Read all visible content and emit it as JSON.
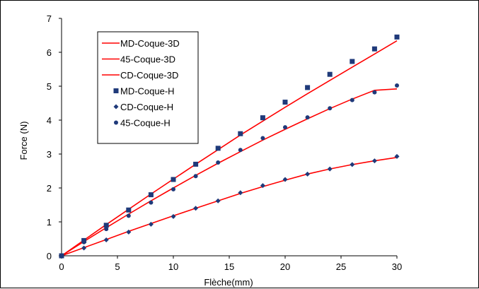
{
  "chart_data": {
    "type": "line",
    "xlabel": "Flèche(mm)",
    "ylabel": "Force (N)",
    "xlim": [
      0,
      30
    ],
    "ylim": [
      0,
      7
    ],
    "xticks": [
      "0",
      "5",
      "10",
      "15",
      "20",
      "25",
      "30"
    ],
    "yticks": [
      "0",
      "1",
      "2",
      "3",
      "4",
      "5",
      "6",
      "7"
    ],
    "grid": false,
    "legend_position": "top-left",
    "colors": {
      "line": "#ff0000",
      "marker": "#1f3a7a",
      "axis": "#000000"
    },
    "series": [
      {
        "name": "MD-Coque-3D",
        "kind": "line",
        "x": [
          0,
          2,
          4,
          6,
          8,
          10,
          12,
          14,
          16,
          18,
          20,
          22,
          24,
          26,
          28,
          30
        ],
        "y": [
          0,
          0.46,
          0.92,
          1.37,
          1.82,
          2.26,
          2.7,
          3.13,
          3.56,
          3.97,
          4.38,
          4.78,
          5.17,
          5.56,
          5.95,
          6.34
        ]
      },
      {
        "name": "45-Coque-3D",
        "kind": "line",
        "x": [
          0,
          2,
          4,
          6,
          8,
          10,
          12,
          14,
          16,
          18,
          20,
          22,
          24,
          26,
          28,
          30
        ],
        "y": [
          0,
          0.42,
          0.83,
          1.23,
          1.62,
          2.0,
          2.37,
          2.73,
          3.07,
          3.41,
          3.73,
          4.04,
          4.34,
          4.62,
          4.88,
          4.92
        ]
      },
      {
        "name": "CD-Coque-3D",
        "kind": "line",
        "x": [
          0,
          2,
          4,
          6,
          8,
          10,
          12,
          14,
          16,
          18,
          20,
          22,
          24,
          26,
          28,
          30
        ],
        "y": [
          0,
          0.24,
          0.48,
          0.72,
          0.95,
          1.18,
          1.4,
          1.62,
          1.84,
          2.04,
          2.23,
          2.41,
          2.56,
          2.69,
          2.8,
          2.9
        ]
      },
      {
        "name": "MD-Coque-H",
        "kind": "marker",
        "marker": "square",
        "x": [
          0,
          2,
          4,
          6,
          8,
          10,
          12,
          14,
          16,
          18,
          20,
          22,
          24,
          26,
          28,
          30
        ],
        "y": [
          0,
          0.45,
          0.9,
          1.35,
          1.8,
          2.25,
          2.7,
          3.17,
          3.6,
          4.07,
          4.53,
          4.96,
          5.35,
          5.73,
          6.1,
          6.45
        ]
      },
      {
        "name": "CD-Coque-H",
        "kind": "marker",
        "marker": "diamond",
        "x": [
          0,
          2,
          4,
          6,
          8,
          10,
          12,
          14,
          16,
          18,
          20,
          22,
          24,
          26,
          28,
          30
        ],
        "y": [
          0,
          0.23,
          0.47,
          0.7,
          0.93,
          1.16,
          1.4,
          1.62,
          1.86,
          2.07,
          2.25,
          2.41,
          2.56,
          2.69,
          2.8,
          2.93
        ]
      },
      {
        "name": "45-Coque-H",
        "kind": "marker",
        "marker": "circle",
        "x": [
          0,
          2,
          4,
          6,
          8,
          10,
          12,
          14,
          16,
          18,
          20,
          22,
          24,
          26,
          28,
          30
        ],
        "y": [
          0,
          0.4,
          0.79,
          1.18,
          1.57,
          1.96,
          2.35,
          2.75,
          3.12,
          3.47,
          3.79,
          4.08,
          4.35,
          4.59,
          4.82,
          5.02
        ]
      }
    ]
  }
}
